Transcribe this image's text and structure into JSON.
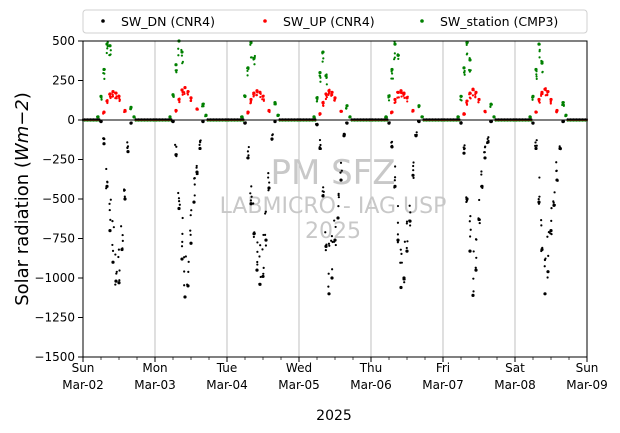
{
  "chart_data": {
    "type": "scatter",
    "title": "",
    "xlabel": "2025",
    "ylabel": "Solar radiation (Wm−2)",
    "ylabel_parts": {
      "prefix": "Solar radiation (",
      "unit": "Wm−2",
      "suffix": ")"
    },
    "ylim": [
      -1500,
      500
    ],
    "yticks": [
      500,
      250,
      0,
      -250,
      -500,
      -750,
      -1000,
      -1250,
      -1500
    ],
    "xlim": [
      "2025-03-02",
      "2025-03-09"
    ],
    "xticks": [
      {
        "date": "2025-03-02",
        "day": "Sun",
        "label": "Mar-02"
      },
      {
        "date": "2025-03-03",
        "day": "Mon",
        "label": "Mar-03"
      },
      {
        "date": "2025-03-04",
        "day": "Tue",
        "label": "Mar-04"
      },
      {
        "date": "2025-03-05",
        "day": "Wed",
        "label": "Mar-05"
      },
      {
        "date": "2025-03-06",
        "day": "Thu",
        "label": "Mar-06"
      },
      {
        "date": "2025-03-07",
        "day": "Fri",
        "label": "Mar-07"
      },
      {
        "date": "2025-03-08",
        "day": "Sat",
        "label": "Mar-08"
      },
      {
        "date": "2025-03-09",
        "day": "Sun",
        "label": "Mar-09"
      }
    ],
    "minor_ticks_per_day": 4,
    "grid": "vertical major",
    "legend_placement": "top, above plot",
    "watermark": [
      "PM SFZ",
      "LABMICRO - IAG USP",
      "2025"
    ],
    "series": [
      {
        "name": "SW_DN (CNR4)",
        "color": "#000000",
        "marker": "dot",
        "x": [
          "2025-03-02",
          "2025-03-02",
          "2025-03-02",
          "2025-03-02",
          "2025-03-02",
          "2025-03-02",
          "2025-03-02",
          "2025-03-02",
          "2025-03-02",
          "2025-03-02",
          "2025-03-02",
          "2025-03-03",
          "2025-03-03",
          "2025-03-03",
          "2025-03-03",
          "2025-03-03",
          "2025-03-03",
          "2025-03-03",
          "2025-03-03",
          "2025-03-03",
          "2025-03-03",
          "2025-03-03",
          "2025-03-04",
          "2025-03-04",
          "2025-03-04",
          "2025-03-04",
          "2025-03-04",
          "2025-03-04",
          "2025-03-04",
          "2025-03-04",
          "2025-03-04",
          "2025-03-04",
          "2025-03-04",
          "2025-03-05",
          "2025-03-05",
          "2025-03-05",
          "2025-03-05",
          "2025-03-05",
          "2025-03-05",
          "2025-03-05",
          "2025-03-05",
          "2025-03-05",
          "2025-03-05",
          "2025-03-05",
          "2025-03-06",
          "2025-03-06",
          "2025-03-06",
          "2025-03-06",
          "2025-03-06",
          "2025-03-06",
          "2025-03-06",
          "2025-03-06",
          "2025-03-06",
          "2025-03-06",
          "2025-03-06",
          "2025-03-07",
          "2025-03-07",
          "2025-03-07",
          "2025-03-07",
          "2025-03-07",
          "2025-03-07",
          "2025-03-07",
          "2025-03-07",
          "2025-03-07",
          "2025-03-07",
          "2025-03-07",
          "2025-03-08",
          "2025-03-08",
          "2025-03-08",
          "2025-03-08",
          "2025-03-08",
          "2025-03-08",
          "2025-03-08",
          "2025-03-08",
          "2025-03-08",
          "2025-03-08",
          "2025-03-08"
        ],
        "hour": [
          6,
          7,
          8,
          9,
          10,
          11,
          12,
          13,
          14,
          15,
          16,
          6,
          7,
          8,
          9,
          10,
          11,
          12,
          13,
          14,
          15,
          16,
          6,
          7,
          8,
          9,
          10,
          11,
          12,
          13,
          14,
          15,
          16,
          6,
          7,
          8,
          9,
          10,
          11,
          12,
          13,
          14,
          15,
          16,
          6,
          7,
          8,
          9,
          10,
          11,
          12,
          13,
          14,
          15,
          16,
          6,
          7,
          8,
          9,
          10,
          11,
          12,
          13,
          14,
          15,
          16,
          6,
          7,
          8,
          9,
          10,
          11,
          12,
          13,
          14,
          15,
          16
        ],
        "y": [
          -10,
          -150,
          -420,
          -700,
          -900,
          -1020,
          -1030,
          -820,
          -500,
          -200,
          -20,
          -10,
          -220,
          -560,
          -880,
          -1120,
          -1050,
          -780,
          -520,
          -330,
          -180,
          -10,
          -20,
          -240,
          -530,
          -720,
          -950,
          -1040,
          -990,
          -760,
          -430,
          -120,
          -10,
          -30,
          -180,
          -480,
          -800,
          -1100,
          -1000,
          -760,
          -620,
          -380,
          -100,
          -20,
          -20,
          -170,
          -420,
          -760,
          -1060,
          -1000,
          -830,
          -640,
          -350,
          -100,
          -10,
          -20,
          -210,
          -500,
          -830,
          -1110,
          -950,
          -630,
          -420,
          -240,
          -140,
          -10,
          -20,
          -180,
          -520,
          -820,
          -1100,
          -960,
          -700,
          -540,
          -380,
          -180,
          -10
        ]
      },
      {
        "name": "SW_UP (CNR4)",
        "color": "#ff0000",
        "marker": "dot",
        "x": [
          "2025-03-02",
          "2025-03-02",
          "2025-03-02",
          "2025-03-02",
          "2025-03-02",
          "2025-03-02",
          "2025-03-02",
          "2025-03-03",
          "2025-03-03",
          "2025-03-03",
          "2025-03-03",
          "2025-03-03",
          "2025-03-03",
          "2025-03-03",
          "2025-03-04",
          "2025-03-04",
          "2025-03-04",
          "2025-03-04",
          "2025-03-04",
          "2025-03-04",
          "2025-03-04",
          "2025-03-05",
          "2025-03-05",
          "2025-03-05",
          "2025-03-05",
          "2025-03-05",
          "2025-03-05",
          "2025-03-05",
          "2025-03-06",
          "2025-03-06",
          "2025-03-06",
          "2025-03-06",
          "2025-03-06",
          "2025-03-06",
          "2025-03-06",
          "2025-03-07",
          "2025-03-07",
          "2025-03-07",
          "2025-03-07",
          "2025-03-07",
          "2025-03-07",
          "2025-03-07",
          "2025-03-08",
          "2025-03-08",
          "2025-03-08",
          "2025-03-08",
          "2025-03-08",
          "2025-03-08",
          "2025-03-08"
        ],
        "hour": [
          7,
          8,
          9,
          10,
          11,
          12,
          14,
          7,
          8,
          9,
          10,
          11,
          12,
          14,
          7,
          8,
          9,
          10,
          11,
          12,
          14,
          7,
          8,
          9,
          10,
          11,
          12,
          14,
          7,
          8,
          9,
          10,
          11,
          12,
          14,
          7,
          8,
          9,
          10,
          11,
          12,
          14,
          7,
          8,
          9,
          10,
          11,
          12,
          14
        ],
        "y": [
          50,
          120,
          165,
          180,
          170,
          150,
          60,
          60,
          130,
          190,
          205,
          180,
          140,
          70,
          50,
          130,
          170,
          185,
          175,
          150,
          60,
          40,
          110,
          165,
          185,
          175,
          140,
          55,
          50,
          130,
          175,
          185,
          170,
          140,
          60,
          40,
          120,
          170,
          195,
          175,
          130,
          55,
          50,
          130,
          175,
          195,
          180,
          130,
          60
        ]
      },
      {
        "name": "SW_station (CMP3)",
        "color": "#008000",
        "marker": "dot",
        "x": [
          "2025-03-02",
          "2025-03-02",
          "2025-03-02",
          "2025-03-02",
          "2025-03-02",
          "2025-03-02",
          "2025-03-02",
          "2025-03-03",
          "2025-03-03",
          "2025-03-03",
          "2025-03-03",
          "2025-03-03",
          "2025-03-03",
          "2025-03-03",
          "2025-03-04",
          "2025-03-04",
          "2025-03-04",
          "2025-03-04",
          "2025-03-04",
          "2025-03-04",
          "2025-03-04",
          "2025-03-05",
          "2025-03-05",
          "2025-03-05",
          "2025-03-05",
          "2025-03-05",
          "2025-03-05",
          "2025-03-05",
          "2025-03-06",
          "2025-03-06",
          "2025-03-06",
          "2025-03-06",
          "2025-03-06",
          "2025-03-06",
          "2025-03-06",
          "2025-03-07",
          "2025-03-07",
          "2025-03-07",
          "2025-03-07",
          "2025-03-07",
          "2025-03-07",
          "2025-03-07",
          "2025-03-08",
          "2025-03-08",
          "2025-03-08",
          "2025-03-08",
          "2025-03-08",
          "2025-03-08",
          "2025-03-08"
        ],
        "hour": [
          5,
          6,
          7,
          8,
          9,
          16,
          17,
          5,
          6,
          7,
          8,
          9,
          16,
          17,
          5,
          6,
          7,
          8,
          9,
          16,
          17,
          5,
          6,
          7,
          8,
          9,
          16,
          17,
          5,
          6,
          7,
          8,
          9,
          16,
          17,
          5,
          6,
          7,
          8,
          9,
          16,
          17,
          5,
          6,
          7,
          8,
          9,
          16,
          17
        ],
        "y": [
          20,
          150,
          320,
          480,
          470,
          80,
          20,
          20,
          160,
          350,
          500,
          430,
          100,
          30,
          20,
          150,
          330,
          490,
          390,
          110,
          30,
          20,
          140,
          300,
          430,
          280,
          90,
          20,
          20,
          150,
          320,
          480,
          410,
          90,
          20,
          20,
          150,
          330,
          490,
          380,
          100,
          20,
          20,
          150,
          320,
          480,
          360,
          110,
          30
        ]
      }
    ]
  }
}
